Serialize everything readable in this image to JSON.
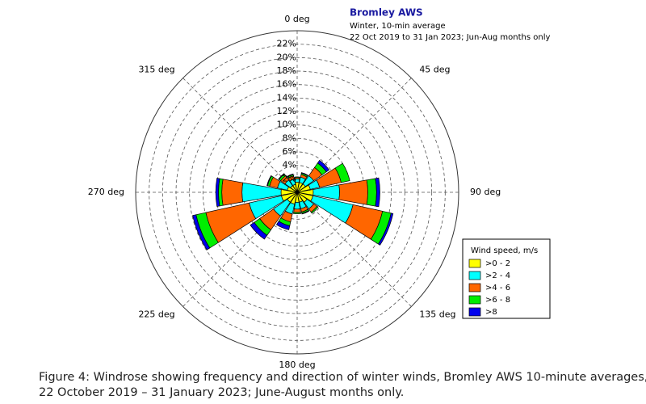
{
  "chart_data": {
    "type": "windrose",
    "title": "Bromley AWS",
    "subtitle": [
      "Winter, 10-min average",
      "22 Oct 2019 to 31 Jan 2023; Jun-Aug months only"
    ],
    "directions": [
      0,
      22.5,
      45,
      67.5,
      90,
      112.5,
      135,
      157.5,
      180,
      202.5,
      225,
      247.5,
      270,
      292.5,
      315,
      337.5
    ],
    "series": [
      {
        "name": ">0 - 2",
        "color": "#ffff00",
        "values": [
          1.5,
          1.5,
          1.5,
          2.0,
          2.4,
          2.4,
          1.8,
          1.5,
          1.5,
          1.8,
          1.8,
          2.4,
          2.4,
          1.5,
          1.2,
          1.2
        ]
      },
      {
        "name": ">2 - 4",
        "color": "#00ffff",
        "values": [
          0.5,
          0.8,
          1.5,
          1.4,
          3.9,
          6.1,
          1.2,
          1.0,
          1.0,
          1.5,
          2.5,
          4.9,
          5.8,
          1.5,
          1.0,
          0.8
        ]
      },
      {
        "name": ">4 - 6",
        "color": "#ff6600",
        "values": [
          0.2,
          0.4,
          1.5,
          3.3,
          4.2,
          4.5,
          0.6,
          0.5,
          0.5,
          1.2,
          2.5,
          6.6,
          3.0,
          1.2,
          0.8,
          0.5
        ]
      },
      {
        "name": ">6 - 8",
        "color": "#00ee00",
        "values": [
          0.1,
          0.2,
          0.8,
          1.3,
          1.3,
          1.3,
          0.2,
          0.2,
          0.2,
          0.6,
          1.0,
          1.5,
          0.5,
          0.3,
          0.3,
          0.2
        ]
      },
      {
        "name": ">8",
        "color": "#0000ee",
        "values": [
          0,
          0.1,
          0.5,
          0,
          0.5,
          0.3,
          0,
          0.1,
          0,
          0.6,
          0.7,
          0.5,
          0.4,
          0.1,
          0.1,
          0.1
        ]
      }
    ],
    "rlim": [
      0,
      24
    ],
    "rticks": [
      {
        "value": 2,
        "label": "2%"
      },
      {
        "value": 4,
        "label": "4%"
      },
      {
        "value": 6,
        "label": "6%"
      },
      {
        "value": 8,
        "label": "8%"
      },
      {
        "value": 10,
        "label": "10%"
      },
      {
        "value": 12,
        "label": "12%"
      },
      {
        "value": 14,
        "label": "14%"
      },
      {
        "value": 16,
        "label": "16%"
      },
      {
        "value": 18,
        "label": "18%"
      },
      {
        "value": 20,
        "label": "20%"
      },
      {
        "value": 22,
        "label": "22%"
      }
    ],
    "angle_ticks": [
      {
        "value": 0,
        "label": "0 deg"
      },
      {
        "value": 45,
        "label": "45 deg"
      },
      {
        "value": 90,
        "label": "90 deg"
      },
      {
        "value": 135,
        "label": "135 deg"
      },
      {
        "value": 180,
        "label": "180 deg"
      },
      {
        "value": 225,
        "label": "225 deg"
      },
      {
        "value": 270,
        "label": "270 deg"
      },
      {
        "value": 315,
        "label": "315 deg"
      }
    ],
    "legend_title": "Wind speed, m/s"
  },
  "caption": [
    "Figure 4: Windrose showing frequency and direction of winter winds, Bromley AWS 10-minute averages,",
    "22 October 2019 – 31 January 2023; June-August months only."
  ]
}
